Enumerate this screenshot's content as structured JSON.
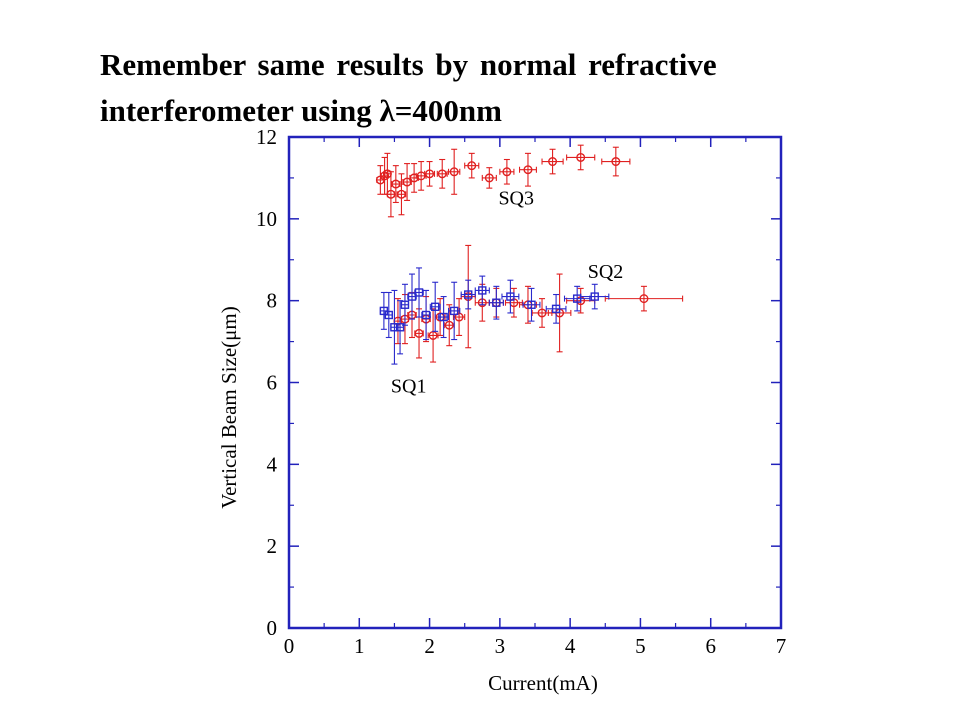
{
  "slide": {
    "title_line1": "Remember same results by normal refractive",
    "title_line2": "interferometer using λ=400nm"
  },
  "chart_data": {
    "type": "scatter",
    "xlabel": "Current(mA)",
    "ylabel": "Vertical Beam Size(μm)",
    "xlim": [
      0,
      7
    ],
    "ylim": [
      0,
      12
    ],
    "xticks": [
      "0",
      "1",
      "2",
      "3",
      "4",
      "5",
      "6",
      "7"
    ],
    "yticks": [
      "0",
      "2",
      "4",
      "6",
      "8",
      "10",
      "12"
    ],
    "grid": false,
    "frame_color": "#2222bb",
    "annotations": [
      {
        "text": "SQ3",
        "x": 2.98,
        "y": 10.35
      },
      {
        "text": "SQ2",
        "x": 4.25,
        "y": 8.55
      },
      {
        "text": "SQ1",
        "x": 1.45,
        "y": 5.75
      }
    ],
    "series": [
      {
        "color": "#e02020",
        "marker": "circle",
        "points": [
          [
            1.3,
            10.95,
            0.05,
            0.35
          ],
          [
            1.36,
            11.05,
            0.05,
            0.45
          ],
          [
            1.4,
            11.1,
            0.05,
            0.5
          ],
          [
            1.45,
            10.6,
            0.05,
            0.55
          ],
          [
            1.52,
            10.85,
            0.06,
            0.45
          ],
          [
            1.6,
            10.6,
            0.06,
            0.5
          ],
          [
            1.68,
            10.9,
            0.06,
            0.45
          ],
          [
            1.78,
            11.0,
            0.06,
            0.35
          ],
          [
            1.88,
            11.05,
            0.07,
            0.35
          ],
          [
            2.0,
            11.1,
            0.07,
            0.3
          ],
          [
            2.18,
            11.1,
            0.07,
            0.35
          ],
          [
            2.35,
            11.15,
            0.08,
            0.55
          ],
          [
            2.6,
            11.3,
            0.1,
            0.3
          ],
          [
            2.85,
            11.0,
            0.1,
            0.25
          ],
          [
            3.1,
            11.15,
            0.1,
            0.3
          ],
          [
            3.4,
            11.2,
            0.12,
            0.4
          ],
          [
            3.75,
            11.4,
            0.15,
            0.3
          ],
          [
            4.15,
            11.5,
            0.2,
            0.3
          ],
          [
            4.65,
            11.4,
            0.2,
            0.35
          ]
        ]
      },
      {
        "color": "#e02020",
        "marker": "circle",
        "points": [
          [
            1.55,
            7.5,
            0.05,
            0.55
          ],
          [
            1.65,
            7.55,
            0.05,
            0.6
          ],
          [
            1.75,
            7.65,
            0.06,
            0.55
          ],
          [
            1.85,
            7.2,
            0.06,
            0.6
          ],
          [
            1.95,
            7.55,
            0.06,
            0.55
          ],
          [
            2.05,
            7.15,
            0.07,
            0.65
          ],
          [
            2.15,
            7.6,
            0.07,
            0.45
          ],
          [
            2.28,
            7.4,
            0.07,
            0.5
          ],
          [
            2.42,
            7.6,
            0.08,
            0.45
          ],
          [
            2.55,
            8.1,
            0.1,
            1.25
          ],
          [
            2.75,
            7.95,
            0.1,
            0.45
          ],
          [
            2.95,
            7.95,
            0.1,
            0.35
          ],
          [
            3.2,
            7.95,
            0.12,
            0.35
          ],
          [
            3.4,
            7.9,
            0.12,
            0.45
          ],
          [
            3.6,
            7.7,
            0.14,
            0.35
          ],
          [
            3.85,
            7.7,
            0.16,
            0.95
          ],
          [
            4.15,
            8.0,
            0.2,
            0.3
          ],
          [
            5.05,
            8.05,
            0.55,
            0.3
          ]
        ]
      },
      {
        "color": "#2a2acc",
        "marker": "square",
        "points": [
          [
            1.35,
            7.75,
            0.05,
            0.45
          ],
          [
            1.42,
            7.65,
            0.05,
            0.55
          ],
          [
            1.5,
            7.35,
            0.05,
            0.9
          ],
          [
            1.58,
            7.35,
            0.05,
            0.65
          ],
          [
            1.65,
            7.9,
            0.05,
            0.5
          ],
          [
            1.75,
            8.1,
            0.06,
            0.55
          ],
          [
            1.85,
            8.2,
            0.06,
            0.6
          ],
          [
            1.95,
            7.65,
            0.06,
            0.6
          ],
          [
            2.08,
            7.85,
            0.07,
            0.6
          ],
          [
            2.2,
            7.6,
            0.07,
            0.5
          ],
          [
            2.35,
            7.75,
            0.08,
            0.7
          ],
          [
            2.55,
            8.15,
            0.1,
            0.35
          ],
          [
            2.75,
            8.25,
            0.1,
            0.35
          ],
          [
            2.95,
            7.95,
            0.1,
            0.4
          ],
          [
            3.15,
            8.1,
            0.12,
            0.4
          ],
          [
            3.45,
            7.9,
            0.12,
            0.4
          ],
          [
            3.8,
            7.8,
            0.14,
            0.35
          ],
          [
            4.1,
            8.05,
            0.18,
            0.3
          ],
          [
            4.35,
            8.1,
            0.2,
            0.3
          ]
        ]
      }
    ]
  }
}
